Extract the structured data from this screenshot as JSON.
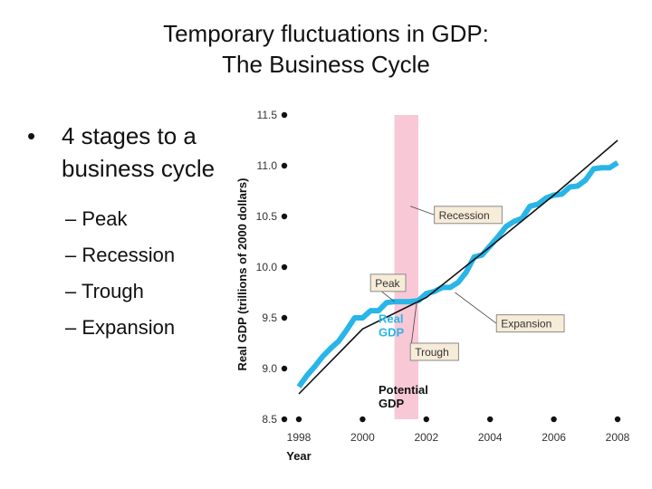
{
  "slide": {
    "title_line1": "Temporary fluctuations in GDP:",
    "title_line2": "The Business Cycle",
    "bullet": "4 stages to a business cycle",
    "sub_items": [
      "– Peak",
      "– Recession",
      "– Trough",
      "– Expansion"
    ]
  },
  "chart_data": {
    "type": "line",
    "xlabel": "Year",
    "ylabel": "Real GDP (trillions of 2000 dollars)",
    "xlim": [
      1998,
      2008
    ],
    "ylim": [
      8.5,
      11.5
    ],
    "x_ticks": [
      1998,
      2000,
      2002,
      2004,
      2006,
      2008
    ],
    "y_ticks": [
      "8.5",
      "9.0",
      "9.5",
      "10.0",
      "10.5",
      "11.0",
      "11.5"
    ],
    "shaded_band": {
      "x_start": 2001.0,
      "x_end": 2001.75,
      "color": "#f8c8d6"
    },
    "series": [
      {
        "name": "Real GDP",
        "color": "#29b5e8",
        "points": [
          [
            1998.0,
            8.82
          ],
          [
            1998.25,
            8.93
          ],
          [
            1998.5,
            9.02
          ],
          [
            1998.75,
            9.12
          ],
          [
            1999.0,
            9.2
          ],
          [
            1999.25,
            9.27
          ],
          [
            1999.5,
            9.38
          ],
          [
            1999.75,
            9.5
          ],
          [
            2000.0,
            9.5
          ],
          [
            2000.25,
            9.57
          ],
          [
            2000.5,
            9.57
          ],
          [
            2000.75,
            9.65
          ],
          [
            2001.0,
            9.66
          ],
          [
            2001.25,
            9.66
          ],
          [
            2001.5,
            9.66
          ],
          [
            2001.75,
            9.67
          ],
          [
            2002.0,
            9.74
          ],
          [
            2002.25,
            9.76
          ],
          [
            2002.5,
            9.8
          ],
          [
            2002.75,
            9.8
          ],
          [
            2003.0,
            9.85
          ],
          [
            2003.25,
            9.95
          ],
          [
            2003.5,
            10.1
          ],
          [
            2003.75,
            10.12
          ],
          [
            2004.0,
            10.21
          ],
          [
            2004.25,
            10.3
          ],
          [
            2004.5,
            10.4
          ],
          [
            2004.75,
            10.45
          ],
          [
            2005.0,
            10.48
          ],
          [
            2005.25,
            10.6
          ],
          [
            2005.5,
            10.62
          ],
          [
            2005.75,
            10.68
          ],
          [
            2006.0,
            10.71
          ],
          [
            2006.25,
            10.72
          ],
          [
            2006.5,
            10.79
          ],
          [
            2006.75,
            10.8
          ],
          [
            2007.0,
            10.86
          ],
          [
            2007.25,
            10.97
          ],
          [
            2007.5,
            10.98
          ],
          [
            2007.75,
            10.98
          ],
          [
            2008.0,
            11.03
          ]
        ]
      },
      {
        "name": "Potential GDP",
        "color": "#111111",
        "points": [
          [
            1998.0,
            8.75
          ],
          [
            2000.0,
            9.39
          ],
          [
            2002.0,
            9.7
          ],
          [
            2004.0,
            10.2
          ],
          [
            2006.0,
            10.71
          ],
          [
            2008.0,
            11.25
          ]
        ]
      }
    ],
    "series_labels": [
      {
        "lines": [
          "Real",
          "GDP"
        ],
        "color": "#29b5e8",
        "x": 2000.5,
        "y": 9.45
      },
      {
        "lines": [
          "Potential",
          "GDP"
        ],
        "color": "#111111",
        "x": 2000.5,
        "y": 8.75
      }
    ],
    "annotations": [
      {
        "text": "Recession",
        "box": [
          2002.25,
          10.6
        ],
        "target": [
          2001.5,
          10.6
        ]
      },
      {
        "text": "Peak",
        "box": [
          2000.25,
          9.93
        ],
        "target": [
          2001.0,
          9.66
        ]
      },
      {
        "text": "Expansion",
        "box": [
          2004.2,
          9.53
        ],
        "target": [
          2002.9,
          9.75
        ]
      },
      {
        "text": "Trough",
        "box": [
          2001.5,
          9.25
        ],
        "target": [
          2001.7,
          9.66
        ]
      }
    ]
  }
}
